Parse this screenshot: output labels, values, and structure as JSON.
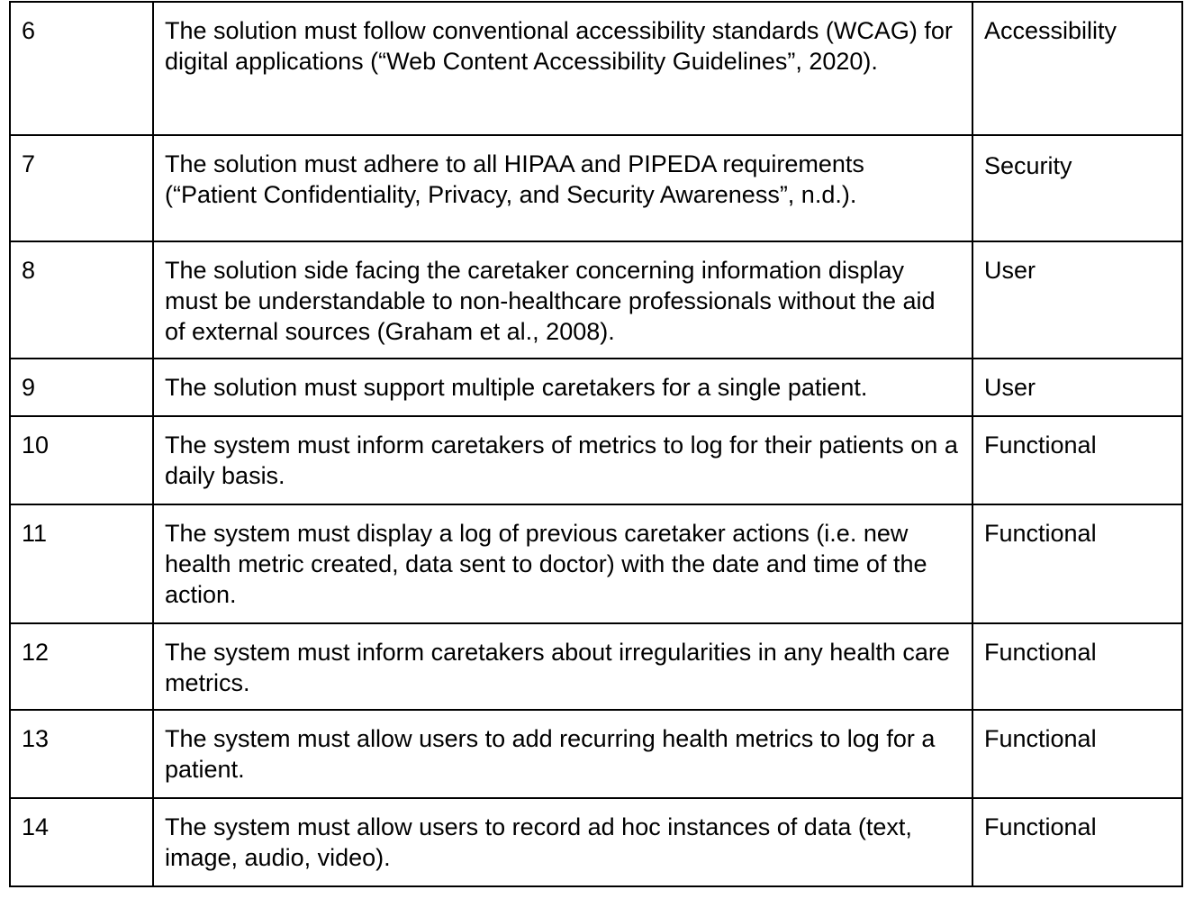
{
  "requirements": [
    {
      "id": "6",
      "description": "The solution must follow conventional accessibility standards (WCAG) for digital applications (“Web Content Accessibility Guidelines”, 2020).",
      "category": "Accessibility"
    },
    {
      "id": "7",
      "description": "The solution must adhere to all HIPAA and PIPEDA requirements (“Patient Confidentiality, Privacy, and Security Awareness”, n.d.).",
      "category": "Security"
    },
    {
      "id": "8",
      "description": "The solution side facing the caretaker concerning information display must be understandable to non-healthcare professionals without the aid of external sources (Graham et al., 2008).",
      "category": "User"
    },
    {
      "id": "9",
      "description": "The solution must support multiple caretakers for a single patient.",
      "category": "User"
    },
    {
      "id": "10",
      "description": "The system must inform caretakers of metrics to log for their patients on a daily basis.",
      "category": "Functional"
    },
    {
      "id": "11",
      "description": "The system must display a log of previous caretaker actions (i.e. new health metric created, data sent to doctor) with the date and time of the action.",
      "category": "Functional"
    },
    {
      "id": "12",
      "description": "The system must inform caretakers about irregularities in any health care metrics.",
      "category": "Functional"
    },
    {
      "id": "13",
      "description": "The system must allow users to add recurring health metrics to log for a patient.",
      "category": "Functional"
    },
    {
      "id": "14",
      "description": "The system must allow users to record ad hoc instances of data (text, image, audio, video).",
      "category": "Functional"
    }
  ]
}
